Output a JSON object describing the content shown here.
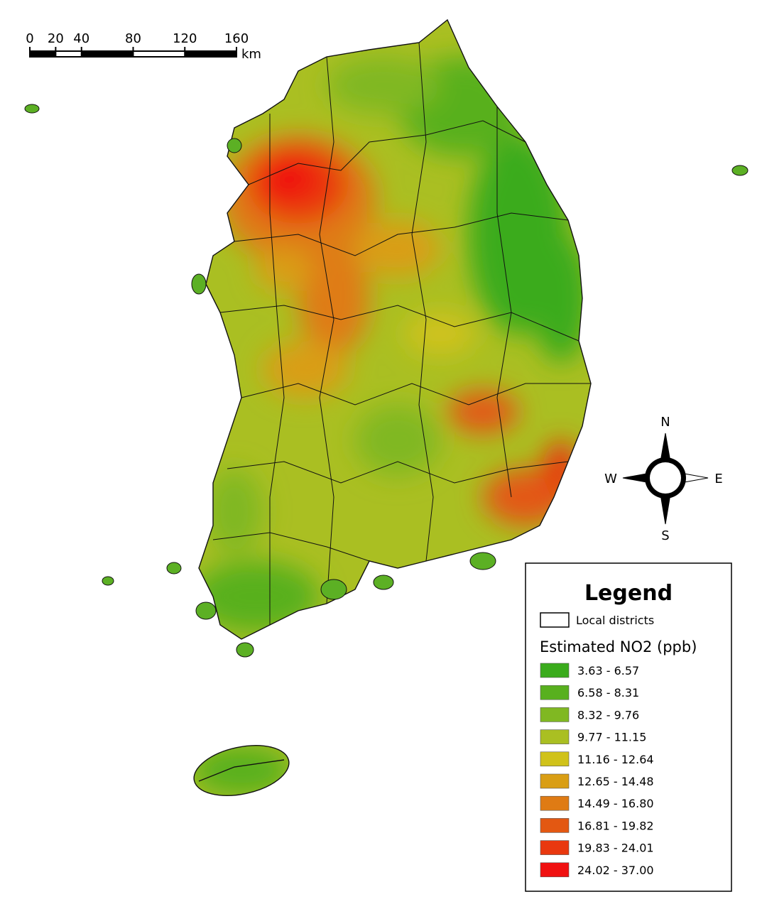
{
  "scale_bar": {
    "ticks": [
      0,
      20,
      40,
      80,
      120,
      160
    ],
    "unit": "km"
  },
  "compass": {
    "north": "N",
    "south": "S",
    "west": "W",
    "east": "E"
  },
  "legend": {
    "title": "Legend",
    "boundary_label": "Local districts",
    "variable": "Estimated NO2 (ppb)",
    "classes": [
      {
        "label": "3.63 - 6.57",
        "color": "#3aab1c"
      },
      {
        "label": "6.58 - 8.31",
        "color": "#58b01e"
      },
      {
        "label": "8.32 - 9.76",
        "color": "#80b822"
      },
      {
        "label": "9.77 - 11.15",
        "color": "#aabf22"
      },
      {
        "label": "11.16 - 12.64",
        "color": "#d0c21a"
      },
      {
        "label": "12.65 - 14.48",
        "color": "#d99e14"
      },
      {
        "label": "14.49 - 16.80",
        "color": "#df7b14"
      },
      {
        "label": "16.81 - 19.82",
        "color": "#e35812"
      },
      {
        "label": "19.83 - 24.01",
        "color": "#e9380f"
      },
      {
        "label": "24.02 - 37.00",
        "color": "#f01010"
      }
    ]
  }
}
